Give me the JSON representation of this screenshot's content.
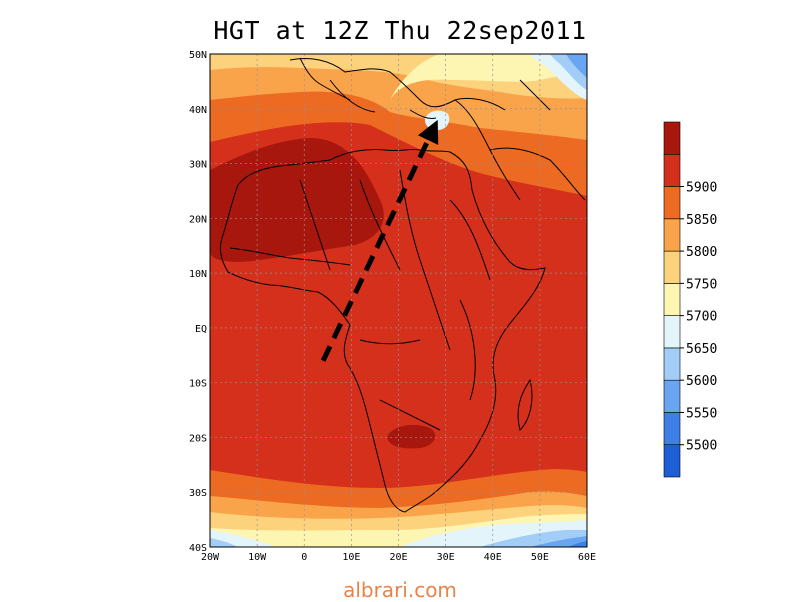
{
  "title": "HGT at 12Z Thu 22sep2011",
  "credit": "albrari.com",
  "map": {
    "extent": {
      "lon": [
        -20,
        60
      ],
      "lat": [
        -40,
        50
      ]
    },
    "lat_ticks": [
      {
        "value": 50,
        "label": "50N"
      },
      {
        "value": 40,
        "label": "40N"
      },
      {
        "value": 30,
        "label": "30N"
      },
      {
        "value": 20,
        "label": "20N"
      },
      {
        "value": 10,
        "label": "10N"
      },
      {
        "value": 0,
        "label": "EQ"
      },
      {
        "value": -10,
        "label": "10S"
      },
      {
        "value": -20,
        "label": "20S"
      },
      {
        "value": -30,
        "label": "30S"
      },
      {
        "value": -40,
        "label": "40S"
      }
    ],
    "lon_ticks": [
      {
        "value": -20,
        "label": "20W"
      },
      {
        "value": -10,
        "label": "10W"
      },
      {
        "value": 0,
        "label": "0"
      },
      {
        "value": 10,
        "label": "10E"
      },
      {
        "value": 20,
        "label": "20E"
      },
      {
        "value": 30,
        "label": "30E"
      },
      {
        "value": 40,
        "label": "40E"
      },
      {
        "value": 50,
        "label": "50E"
      },
      {
        "value": 60,
        "label": "60E"
      }
    ],
    "arrow": {
      "start": {
        "lon": 4,
        "lat": -6
      },
      "end": {
        "lon": 27.5,
        "lat": 36.5
      }
    }
  },
  "colorbar": {
    "bins": [
      {
        "color": "#1f5fd6"
      },
      {
        "color": "#3f80e6"
      },
      {
        "color": "#6aa5f2"
      },
      {
        "color": "#a2cdf7"
      },
      {
        "color": "#e3f5fb"
      },
      {
        "color": "#fdf6b2"
      },
      {
        "color": "#fcd27c"
      },
      {
        "color": "#f9a44a"
      },
      {
        "color": "#ec6a22"
      },
      {
        "color": "#d5301b"
      },
      {
        "color": "#a8170e"
      }
    ],
    "labels": [
      "5500",
      "5550",
      "5600",
      "5650",
      "5700",
      "5750",
      "5800",
      "5850",
      "5900"
    ]
  }
}
